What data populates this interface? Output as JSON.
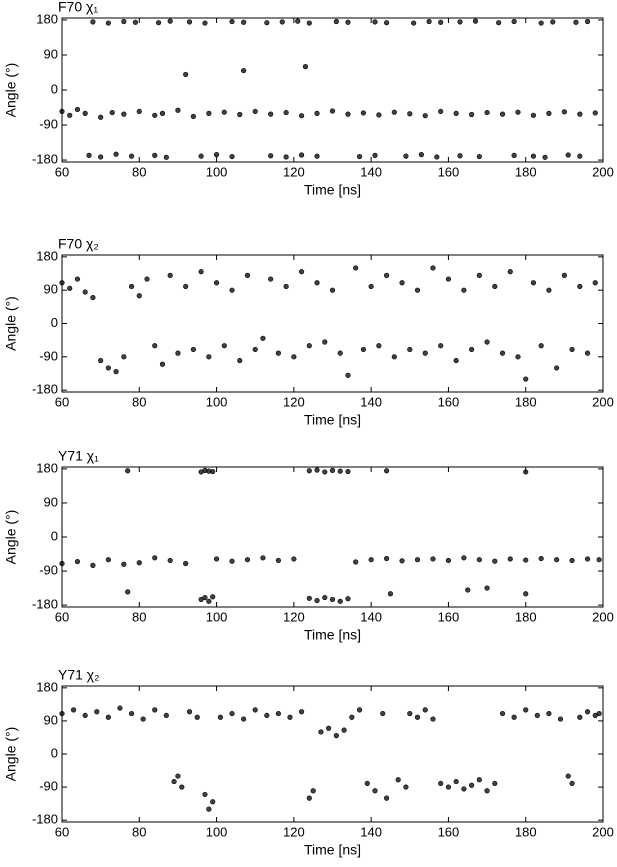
{
  "chart_data": [
    {
      "type": "scatter",
      "title": "F70 χ₁",
      "xlabel": "Time [ns]",
      "ylabel": "Angle (°)",
      "color": "#000000",
      "xlim": [
        60,
        200
      ],
      "xticks": [
        60,
        80,
        100,
        120,
        140,
        160,
        180,
        200
      ],
      "ylim": [
        -185,
        185
      ],
      "yticks": [
        -180,
        -90,
        0,
        90,
        180
      ],
      "x": [
        60,
        62,
        64,
        66,
        70,
        73,
        76,
        80,
        84,
        86,
        90,
        94,
        98,
        102,
        106,
        110,
        114,
        118,
        122,
        126,
        130,
        134,
        138,
        142,
        146,
        150,
        154,
        158,
        162,
        166,
        170,
        174,
        178,
        182,
        186,
        190,
        194,
        198,
        67,
        70,
        74,
        78,
        84,
        87,
        96,
        100,
        104,
        114,
        118,
        122,
        126,
        137,
        141,
        149,
        153,
        157,
        163,
        168,
        177,
        182,
        185,
        191,
        194,
        68,
        72,
        76,
        79,
        85,
        88,
        93,
        97,
        104,
        107,
        113,
        117,
        121,
        124,
        131,
        134,
        141,
        144,
        151,
        155,
        158,
        163,
        167,
        173,
        177,
        184,
        187,
        193,
        196,
        92,
        107,
        123
      ],
      "values": [
        -55,
        -65,
        -50,
        -60,
        -70,
        -58,
        -62,
        -55,
        -65,
        -60,
        -52,
        -68,
        -60,
        -57,
        -63,
        -55,
        -62,
        -58,
        -66,
        -60,
        -54,
        -62,
        -59,
        -64,
        -57,
        -61,
        -66,
        -55,
        -60,
        -63,
        -58,
        -62,
        -57,
        -65,
        -60,
        -56,
        -62,
        -59,
        -168,
        -172,
        -165,
        -170,
        -168,
        -173,
        -170,
        -166,
        -171,
        -169,
        -172,
        -167,
        -170,
        -171,
        -168,
        -170,
        -166,
        -172,
        -169,
        -171,
        -168,
        -170,
        -173,
        -167,
        -170,
        175,
        172,
        176,
        174,
        173,
        177,
        175,
        172,
        176,
        174,
        173,
        175,
        177,
        172,
        176,
        174,
        175,
        173,
        172,
        176,
        174,
        175,
        177,
        173,
        176,
        172,
        175,
        174,
        176,
        40,
        50,
        60
      ]
    },
    {
      "type": "scatter",
      "title": "F70 χ₂",
      "xlabel": "Time [ns]",
      "ylabel": "Angle (°)",
      "color": "#000000",
      "xlim": [
        60,
        200
      ],
      "xticks": [
        60,
        80,
        100,
        120,
        140,
        160,
        180,
        200
      ],
      "ylim": [
        -185,
        185
      ],
      "yticks": [
        -180,
        -90,
        0,
        90,
        180
      ],
      "x": [
        60,
        62,
        64,
        66,
        68,
        70,
        72,
        74,
        76,
        78,
        80,
        82,
        84,
        86,
        88,
        90,
        92,
        94,
        96,
        98,
        100,
        102,
        104,
        106,
        108,
        110,
        112,
        114,
        116,
        118,
        120,
        122,
        124,
        126,
        128,
        130,
        132,
        134,
        136,
        138,
        140,
        142,
        144,
        146,
        148,
        150,
        152,
        154,
        156,
        158,
        160,
        162,
        164,
        166,
        168,
        170,
        172,
        174,
        176,
        178,
        180,
        182,
        184,
        186,
        188,
        190,
        192,
        194,
        196,
        198
      ],
      "values": [
        110,
        95,
        120,
        85,
        70,
        -100,
        -120,
        -130,
        -90,
        100,
        75,
        120,
        -60,
        -110,
        130,
        -80,
        100,
        -70,
        140,
        -90,
        110,
        -60,
        90,
        -100,
        130,
        -70,
        -40,
        120,
        -80,
        100,
        -90,
        140,
        -60,
        110,
        -50,
        90,
        -80,
        -140,
        150,
        -70,
        100,
        -60,
        130,
        -90,
        110,
        -70,
        90,
        -80,
        150,
        -60,
        120,
        -100,
        90,
        -70,
        130,
        -50,
        100,
        -80,
        140,
        -90,
        -150,
        110,
        -60,
        90,
        -120,
        130,
        -70,
        100,
        -80,
        110
      ]
    },
    {
      "type": "scatter",
      "title": "Y71 χ₁",
      "xlabel": "Time [ns]",
      "ylabel": "Angle (°)",
      "color": "#000000",
      "xlim": [
        60,
        200
      ],
      "xticks": [
        60,
        80,
        100,
        120,
        140,
        160,
        180,
        200
      ],
      "ylim": [
        -185,
        185
      ],
      "yticks": [
        -180,
        -90,
        0,
        90,
        180
      ],
      "x": [
        60,
        64,
        68,
        72,
        76,
        80,
        84,
        88,
        92,
        100,
        104,
        108,
        112,
        116,
        120,
        136,
        140,
        144,
        148,
        152,
        156,
        160,
        164,
        168,
        172,
        176,
        180,
        184,
        188,
        192,
        196,
        199,
        96,
        97,
        98,
        99,
        124,
        126,
        128,
        130,
        132,
        134,
        77,
        96,
        97,
        98,
        99,
        124,
        126,
        128,
        130,
        132,
        134,
        144,
        180,
        77,
        145,
        165,
        170,
        180
      ],
      "values": [
        -70,
        -65,
        -75,
        -60,
        -72,
        -68,
        -55,
        -62,
        -70,
        -58,
        -64,
        -60,
        -55,
        -62,
        -58,
        -66,
        -60,
        -57,
        -63,
        -60,
        -58,
        -62,
        -55,
        -60,
        -64,
        -58,
        -61,
        -57,
        -60,
        -62,
        -58,
        -60,
        -165,
        -160,
        -170,
        -158,
        -162,
        -168,
        -160,
        -165,
        -170,
        -163,
        175,
        172,
        176,
        174,
        173,
        175,
        177,
        172,
        176,
        174,
        173,
        175,
        172,
        -145,
        -150,
        -140,
        -135,
        -150
      ]
    },
    {
      "type": "scatter",
      "title": "Y71 χ₂",
      "xlabel": "Time [ns]",
      "ylabel": "Angle (°)",
      "color": "#000000",
      "xlim": [
        60,
        200
      ],
      "xticks": [
        60,
        80,
        100,
        120,
        140,
        160,
        180,
        200
      ],
      "ylim": [
        -185,
        185
      ],
      "yticks": [
        -180,
        -90,
        0,
        90,
        180
      ],
      "x": [
        60,
        63,
        66,
        69,
        72,
        75,
        78,
        81,
        84,
        87,
        89,
        90,
        91,
        93,
        95,
        97,
        98,
        99,
        101,
        104,
        107,
        110,
        113,
        116,
        119,
        122,
        124,
        125,
        127,
        129,
        131,
        133,
        135,
        137,
        139,
        141,
        143,
        144,
        147,
        149,
        150,
        152,
        154,
        156,
        158,
        160,
        162,
        164,
        166,
        168,
        170,
        172,
        174,
        177,
        180,
        183,
        186,
        189,
        191,
        192,
        194,
        196,
        198,
        199
      ],
      "values": [
        110,
        120,
        105,
        115,
        100,
        125,
        110,
        95,
        120,
        105,
        -75,
        -60,
        -90,
        115,
        100,
        -110,
        -150,
        -130,
        100,
        110,
        95,
        120,
        105,
        110,
        100,
        115,
        -120,
        -100,
        60,
        70,
        50,
        65,
        100,
        120,
        -80,
        -100,
        110,
        -120,
        -70,
        -90,
        110,
        100,
        120,
        95,
        -80,
        -90,
        -75,
        -95,
        -85,
        -70,
        -100,
        -80,
        110,
        100,
        120,
        105,
        110,
        95,
        -60,
        -80,
        100,
        115,
        105,
        110
      ]
    }
  ]
}
